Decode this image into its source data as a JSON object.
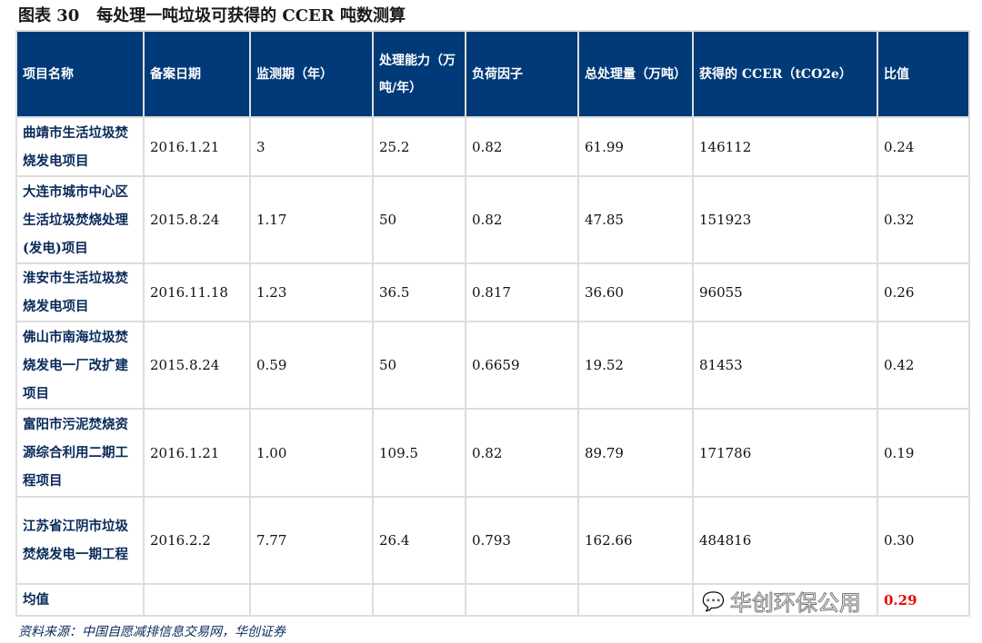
{
  "title": "图表 30   每处理一吨垃圾可获得的 CCER 吨数测算",
  "headers": [
    "项目名称",
    "备案日期",
    "监测期（年）",
    "处理能力（万吨/年）",
    "负荷因子",
    "总处理量（万吨）",
    "获得的 CCER（tCO2e）",
    "比值"
  ],
  "rows": [
    [
      "曲靖市生活垃圾焚烧发电项目",
      "2016.1.21",
      "3",
      "25.2",
      "0.82",
      "61.99",
      "146112",
      "0.24"
    ],
    [
      "大连市城市中心区生活垃圾焚烧处理(发电)项目",
      "2015.8.24",
      "1.17",
      "50",
      "0.82",
      "47.85",
      "151923",
      "0.32"
    ],
    [
      "淮安市生活垃圾焚烧发电项目",
      "2016.11.18",
      "1.23",
      "36.5",
      "0.817",
      "36.60",
      "96055",
      "0.26"
    ],
    [
      "佛山市南海垃圾焚烧发电一厂改扩建项目",
      "2015.8.24",
      "0.59",
      "50",
      "0.6659",
      "19.52",
      "81453",
      "0.42"
    ],
    [
      "富阳市污泥焚烧资源综合利用二期工程项目",
      "2016.1.21",
      "1.00",
      "109.5",
      "0.82",
      "89.79",
      "171786",
      "0.19"
    ],
    [
      "江苏省江阴市垃圾焚烧发电一期工程",
      "2016.2.2",
      "7.77",
      "26.4",
      "0.793",
      "162.66",
      "484816",
      "0.30"
    ]
  ],
  "average": {
    "label": "均值",
    "value": "0.29"
  },
  "source": "资料来源：中国自愿减排信息交易网，华创证券",
  "watermark": "华创环保公用",
  "colors": {
    "header_bg": "#003a78",
    "average_value": "#e00000"
  }
}
